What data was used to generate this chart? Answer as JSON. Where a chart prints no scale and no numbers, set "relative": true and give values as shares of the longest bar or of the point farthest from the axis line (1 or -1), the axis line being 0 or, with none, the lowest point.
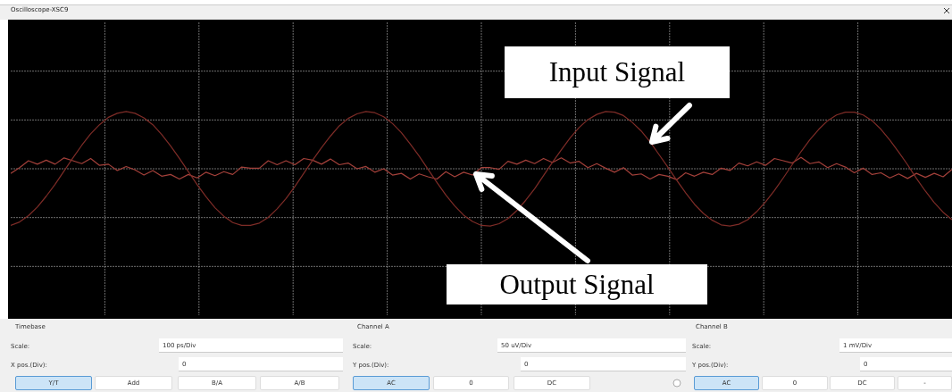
{
  "chart_data": {
    "type": "line",
    "title": "Oscilloscope-XSC9",
    "relative": true,
    "grid": true,
    "legend": false,
    "marker": "none",
    "line_style": "solid",
    "categories": [
      null,
      null,
      null,
      null,
      null,
      null,
      null,
      null,
      null,
      null,
      null,
      null,
      null,
      null,
      null,
      null,
      null,
      null,
      null,
      null,
      null,
      null,
      null,
      null,
      null,
      null,
      null,
      null,
      null,
      null,
      null,
      null,
      null,
      null,
      null,
      null,
      null,
      null,
      null,
      null,
      null,
      null,
      null,
      null,
      null,
      null,
      null,
      null,
      null,
      null,
      null,
      null,
      null,
      null,
      null,
      null,
      null,
      null,
      null,
      null,
      null,
      null,
      null,
      null,
      null,
      null,
      null,
      null,
      null,
      null,
      null,
      null,
      null,
      null,
      null,
      null,
      null,
      null,
      null,
      null,
      null,
      null,
      null,
      null,
      null,
      null,
      null,
      null,
      null,
      null,
      null,
      null,
      null,
      null,
      null,
      null,
      null,
      null,
      null,
      null,
      null,
      null,
      null,
      null,
      null,
      null,
      null
    ],
    "series": [
      {
        "name": "Input Signal",
        "color": "#7e2c27",
        "values": [
          -0.99,
          -0.93,
          -0.82,
          -0.67,
          -0.48,
          -0.27,
          -0.04,
          0.19,
          0.41,
          0.61,
          0.77,
          0.9,
          0.97,
          1,
          0.97,
          0.89,
          0.77,
          0.6,
          0.4,
          0.18,
          -0.05,
          -0.28,
          -0.49,
          -0.68,
          -0.83,
          -0.94,
          -0.99,
          -0.99,
          -0.95,
          -0.85,
          -0.7,
          -0.52,
          -0.31,
          -0.08,
          0.15,
          0.37,
          0.57,
          0.75,
          0.88,
          0.96,
          1,
          0.98,
          0.91,
          0.79,
          0.63,
          0.43,
          0.22,
          -0.01,
          -0.24,
          -0.46,
          -0.65,
          -0.81,
          -0.92,
          -0.99,
          -1,
          -0.96,
          -0.87,
          -0.73,
          -0.55,
          -0.35,
          -0.12,
          0.11,
          0.33,
          0.54,
          0.72,
          0.86,
          0.95,
          1,
          0.99,
          0.93,
          0.81,
          0.66,
          0.47,
          0.25,
          0.03,
          -0.2,
          -0.42,
          -0.62,
          -0.78,
          -0.9,
          -0.98,
          -1,
          -0.97,
          -0.89,
          -0.75,
          -0.58,
          -0.38,
          -0.16,
          0.07,
          0.3,
          0.51,
          0.69,
          0.84,
          0.94,
          0.99,
          0.99,
          0.94,
          0.84,
          0.69,
          0.5,
          0.29,
          0.07,
          -0.17,
          -0.39,
          -0.59,
          -0.76,
          -0.89
        ]
      },
      {
        "name": "Output Signal",
        "color": "#a3403a",
        "values": [
          -0.08,
          0.02,
          0.14,
          0.08,
          0.15,
          0.08,
          0.19,
          0.14,
          0.09,
          0.18,
          0.06,
          0.08,
          -0.03,
          0.04,
          -0.02,
          -0.11,
          -0.03,
          -0.13,
          -0.1,
          -0.18,
          -0.1,
          -0.16,
          -0.06,
          -0.12,
          -0.05,
          -0.1,
          0.03,
          0.01,
          0.01,
          0.14,
          0.07,
          0.14,
          0.07,
          0.18,
          0.15,
          0.08,
          0.17,
          0.07,
          0.1,
          0,
          0.04,
          -0.06,
          0,
          -0.11,
          -0.08,
          -0.18,
          -0.09,
          -0.14,
          -0.18,
          -0.05,
          -0.14,
          -0.06,
          -0.11,
          0.02,
          0.02,
          -0.01,
          0.13,
          0.08,
          0.15,
          0.09,
          0.18,
          0.11,
          0.19,
          0.1,
          0.13,
          0.02,
          0.09,
          0.01,
          -0.06,
          0.02,
          -0.11,
          -0.09,
          -0.18,
          -0.1,
          -0.13,
          -0.19,
          -0.07,
          -0.13,
          -0.06,
          -0.1,
          0.01,
          -0.03,
          0.1,
          0.05,
          0.12,
          0.06,
          0.18,
          0.14,
          0.1,
          0.2,
          0.09,
          0.12,
          0.02,
          0.09,
          0.03,
          -0.07,
          0.01,
          -0.1,
          -0.07,
          -0.16,
          -0.09,
          -0.17,
          -0.08,
          -0.15,
          -0.08,
          -0.14,
          -0.01
        ]
      }
    ],
    "annotations": [
      "Timebase",
      "Scale:",
      "100 ps/Div",
      "X pos.(Div):",
      "0",
      "Y/T",
      "Add",
      "B/A",
      "A/B",
      "Channel A",
      "Scale:",
      "50 uV/Div",
      "Y pos.(Div):",
      "0",
      "AC",
      "0",
      "DC",
      "Channel B",
      "Scale:",
      "1 mV/Div",
      "Y pos.(Div):",
      "0",
      "AC",
      "0",
      "DC",
      "-"
    ]
  }
}
